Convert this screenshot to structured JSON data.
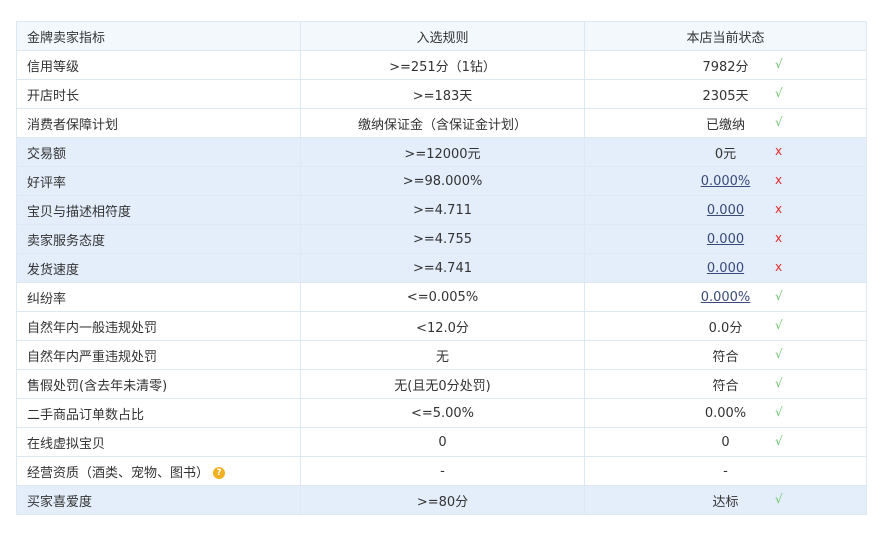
{
  "headers": [
    "金牌卖家指标",
    "入选规则",
    "本店当前状态"
  ],
  "colors": {
    "ok": "#6cc56c",
    "bad": "#e52b2b",
    "highlight": "#e4eefb"
  },
  "rows": [
    {
      "name": "信用等级",
      "rule": ">=251分（1钻）",
      "value": "7982分",
      "mark": "√",
      "pass": true,
      "hl": false,
      "link": false
    },
    {
      "name": "开店时长",
      "rule": ">=183天",
      "value": "2305天",
      "mark": "√",
      "pass": true,
      "hl": false,
      "link": false
    },
    {
      "name": "消费者保障计划",
      "rule": "缴纳保证金（含保证金计划）",
      "value": "已缴纳",
      "mark": "√",
      "pass": true,
      "hl": false,
      "link": false
    },
    {
      "name": "交易额",
      "rule": ">=12000元",
      "value": "0元",
      "mark": "x",
      "pass": false,
      "hl": true,
      "link": false
    },
    {
      "name": "好评率",
      "rule": ">=98.000%",
      "value": "0.000%",
      "mark": "x",
      "pass": false,
      "hl": true,
      "link": true
    },
    {
      "name": "宝贝与描述相符度",
      "rule": ">=4.711",
      "value": "0.000",
      "mark": "x",
      "pass": false,
      "hl": true,
      "link": true
    },
    {
      "name": "卖家服务态度",
      "rule": ">=4.755",
      "value": "0.000",
      "mark": "x",
      "pass": false,
      "hl": true,
      "link": true
    },
    {
      "name": "发货速度",
      "rule": ">=4.741",
      "value": "0.000",
      "mark": "x",
      "pass": false,
      "hl": true,
      "link": true
    },
    {
      "name": "纠纷率",
      "rule": "<=0.005%",
      "value": "0.000%",
      "mark": "√",
      "pass": true,
      "hl": false,
      "link": true
    },
    {
      "name": "自然年内一般违规处罚",
      "rule": "<12.0分",
      "value": "0.0分",
      "mark": "√",
      "pass": true,
      "hl": false,
      "link": false
    },
    {
      "name": "自然年内严重违规处罚",
      "rule": "无",
      "value": "符合",
      "mark": "√",
      "pass": true,
      "hl": false,
      "link": false
    },
    {
      "name": "售假处罚(含去年未清零)",
      "rule": "无(且无0分处罚)",
      "value": "符合",
      "mark": "√",
      "pass": true,
      "hl": false,
      "link": false
    },
    {
      "name": "二手商品订单数占比",
      "rule": "<=5.00%",
      "value": "0.00%",
      "mark": "√",
      "pass": true,
      "hl": false,
      "link": false
    },
    {
      "name": "在线虚拟宝贝",
      "rule": "0",
      "value": "0",
      "mark": "√",
      "pass": true,
      "hl": false,
      "link": false
    },
    {
      "name": "经营资质（酒类、宠物、图书）",
      "rule": "-",
      "value": "-",
      "mark": "",
      "pass": true,
      "hl": false,
      "link": false,
      "help": "?"
    },
    {
      "name": "买家喜爱度",
      "rule": ">=80分",
      "value": "达标",
      "mark": "√",
      "pass": true,
      "hl": true,
      "link": false
    }
  ]
}
